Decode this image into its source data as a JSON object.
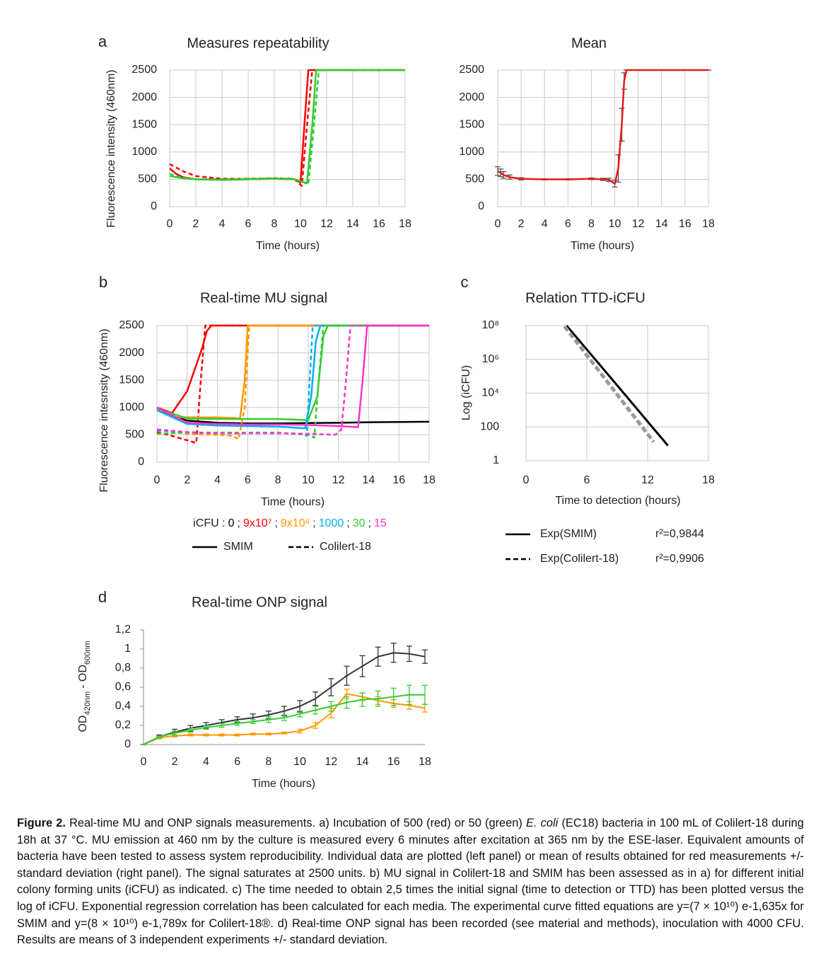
{
  "chart_data": [
    {
      "type": "line",
      "panel": "a",
      "title": "Measures repeatability",
      "ylabel": "Fluorescence intensity (460nm)",
      "xlabel": "Time  (hours)",
      "xlim": [
        0,
        18
      ],
      "xticks": [
        0,
        2,
        4,
        6,
        8,
        10,
        12,
        14,
        16,
        18
      ],
      "ylim": [
        0,
        2500
      ],
      "yticks": [
        0,
        500,
        1000,
        1500,
        2000,
        2500
      ],
      "grid": true,
      "series": [
        {
          "color": "#ff0000",
          "dashed": false,
          "x": [
            0,
            0.5,
            1,
            2,
            4,
            6,
            8,
            9.5,
            10,
            10.3,
            10.6,
            18
          ],
          "values": [
            700,
            600,
            540,
            500,
            500,
            500,
            510,
            500,
            440,
            1500,
            2500,
            2500
          ]
        },
        {
          "color": "#ff0000",
          "dashed": true,
          "x": [
            0,
            1,
            2,
            4,
            6,
            8,
            9.5,
            10.1,
            10.5,
            10.9,
            18
          ],
          "values": [
            780,
            650,
            560,
            510,
            510,
            520,
            510,
            380,
            1500,
            2500,
            2500
          ]
        },
        {
          "color": "#33cc33",
          "dashed": false,
          "x": [
            0,
            1,
            2,
            4,
            6,
            8,
            9.5,
            10.5,
            10.9,
            11.2,
            18
          ],
          "values": [
            560,
            520,
            500,
            490,
            500,
            510,
            500,
            430,
            1500,
            2500,
            2500
          ]
        },
        {
          "color": "#33cc33",
          "dashed": true,
          "x": [
            0,
            1,
            2,
            4,
            6,
            8,
            9.5,
            10.6,
            11,
            11.4,
            18
          ],
          "values": [
            600,
            530,
            500,
            500,
            510,
            520,
            510,
            410,
            1400,
            2500,
            2500
          ]
        }
      ]
    },
    {
      "type": "line",
      "title": "Mean",
      "xlabel": "Time (hours)",
      "xlim": [
        0,
        18
      ],
      "xticks": [
        0,
        2,
        4,
        6,
        8,
        10,
        12,
        14,
        16,
        18
      ],
      "ylim": [
        0,
        2500
      ],
      "yticks": [
        0,
        500,
        1000,
        1500,
        2000,
        2500
      ],
      "grid": true,
      "series": [
        {
          "color": "#e31a1c",
          "dashed": false,
          "x": [
            0,
            0.25,
            0.5,
            1,
            2,
            4,
            6,
            8,
            9,
            9.5,
            10,
            10.3,
            10.6,
            10.8,
            11,
            18
          ],
          "values": [
            650,
            620,
            580,
            540,
            510,
            500,
            500,
            510,
            500,
            490,
            420,
            700,
            1500,
            2300,
            2500,
            2500
          ],
          "errors": [
            80,
            70,
            60,
            40,
            20,
            10,
            10,
            15,
            20,
            30,
            60,
            250,
            300,
            150,
            0,
            0
          ],
          "error_color": "#555555"
        }
      ]
    },
    {
      "type": "line",
      "panel": "b",
      "title": "Real-time MU signal",
      "ylabel": "Fluorescence intesnsity (460nm)",
      "xlabel": "Time (hours)",
      "xlim": [
        0,
        18
      ],
      "xticks": [
        0,
        2,
        4,
        6,
        8,
        10,
        12,
        14,
        16,
        18
      ],
      "ylim": [
        0,
        2500
      ],
      "yticks": [
        0,
        500,
        1000,
        1500,
        2000,
        2500
      ],
      "grid": true,
      "legend_title": "iCFU :",
      "legend_separator": ";",
      "line_styles": [
        {
          "label": "SMIM",
          "dashed": false
        },
        {
          "label": "Colilert-18",
          "dashed": true
        }
      ],
      "series": [
        {
          "name": "0",
          "color": "#000000",
          "dashed": false,
          "x": [
            0,
            1,
            2,
            4,
            6,
            8,
            10,
            12,
            14,
            16,
            18
          ],
          "values": [
            1000,
            850,
            760,
            720,
            710,
            710,
            715,
            720,
            730,
            735,
            740
          ]
        },
        {
          "name": "9x10⁷",
          "color": "#ff0000",
          "dashed": false,
          "x": [
            0,
            1,
            2,
            3,
            3.3,
            3.6,
            18
          ],
          "values": [
            1000,
            900,
            1300,
            2100,
            2400,
            2500,
            2500
          ]
        },
        {
          "name": "9x10⁷",
          "color": "#ff0000",
          "dashed": true,
          "x": [
            0,
            1,
            2,
            2.6,
            2.9,
            3.2,
            18
          ],
          "values": [
            550,
            480,
            400,
            350,
            1500,
            2500,
            2500
          ]
        },
        {
          "name": "9x10⁶",
          "color": "#ff9900",
          "dashed": false,
          "x": [
            0,
            1,
            2,
            4,
            5,
            5.5,
            5.8,
            6,
            18
          ],
          "values": [
            950,
            830,
            820,
            820,
            810,
            800,
            1500,
            2500,
            2500
          ]
        },
        {
          "name": "9x10⁶",
          "color": "#ff9900",
          "dashed": true,
          "x": [
            0,
            2,
            4,
            5,
            5.4,
            5.8,
            6.1,
            18
          ],
          "values": [
            600,
            520,
            500,
            480,
            420,
            1000,
            2500,
            2500
          ]
        },
        {
          "name": "1000",
          "color": "#00b0f0",
          "dashed": false,
          "x": [
            0,
            2,
            4,
            6,
            8,
            9.8,
            10.2,
            10.5,
            10.8,
            18
          ],
          "values": [
            950,
            700,
            670,
            660,
            650,
            620,
            1200,
            2200,
            2500,
            2500
          ]
        },
        {
          "name": "1000",
          "color": "#00b0f0",
          "dashed": true,
          "x": [
            0,
            2,
            4,
            6,
            8,
            9.6,
            9.9,
            10.1,
            10.3,
            18
          ],
          "values": [
            580,
            540,
            530,
            530,
            530,
            520,
            480,
            1500,
            2500,
            2500
          ]
        },
        {
          "name": "30",
          "color": "#33cc33",
          "dashed": false,
          "x": [
            0,
            2,
            4,
            6,
            8,
            10,
            10.6,
            11,
            11.3,
            18
          ],
          "values": [
            980,
            800,
            790,
            790,
            790,
            770,
            1200,
            2300,
            2500,
            2500
          ]
        },
        {
          "name": "30",
          "color": "#33cc33",
          "dashed": true,
          "x": [
            0,
            2,
            4,
            6,
            8,
            10,
            10.4,
            10.7,
            11,
            18
          ],
          "values": [
            520,
            540,
            540,
            540,
            540,
            500,
            450,
            1500,
            2500,
            2500
          ]
        },
        {
          "name": "15",
          "color": "#ff33cc",
          "dashed": false,
          "x": [
            0,
            2,
            4,
            6,
            8,
            10,
            12,
            13.3,
            13.6,
            13.9,
            18
          ],
          "values": [
            1000,
            720,
            700,
            690,
            690,
            680,
            660,
            640,
            1500,
            2500,
            2500
          ]
        },
        {
          "name": "15",
          "color": "#ff33cc",
          "dashed": true,
          "x": [
            0,
            2,
            4,
            6,
            8,
            10,
            11.8,
            12.2,
            12.5,
            12.8,
            18
          ],
          "values": [
            600,
            550,
            530,
            530,
            530,
            520,
            500,
            600,
            1500,
            2500,
            2500
          ]
        }
      ]
    },
    {
      "type": "line",
      "panel": "c",
      "title": "Relation TTD-iCFU",
      "ylabel": "Log (iCFU)",
      "xlabel": "Time to detection (hours)",
      "xlim": [
        0,
        18
      ],
      "xticks": [
        0,
        6,
        12,
        18
      ],
      "ylim": [
        1,
        100000000
      ],
      "log_y": true,
      "yticks": [
        1,
        100,
        {
          "value": 10000,
          "label": "10⁴"
        },
        {
          "value": 1000000,
          "label": "10⁶"
        },
        {
          "value": 100000000,
          "label": "10⁸"
        }
      ],
      "grid": true,
      "series": [
        {
          "name": "Exp(SMIM)",
          "r2_label": "r²=0,9844",
          "color": "#000000",
          "dashed": false,
          "x": [
            4,
            6,
            8,
            10,
            12,
            14
          ],
          "values": [
            100000000,
            3850000,
            146000,
            5600,
            210,
            7.9
          ]
        },
        {
          "name": "Exp(Colilert-18)",
          "r2_label": "r²=0,9906",
          "color": "#999999",
          "dashed": true,
          "x": [
            3.8,
            6,
            8,
            10,
            12.6
          ],
          "values": [
            89000000,
            1750000,
            49000,
            1360,
            13
          ]
        }
      ]
    },
    {
      "type": "line",
      "panel": "d",
      "title": "Real-time ONP signal",
      "ylabel": [
        "OD",
        "420nm",
        "- OD",
        "600nm"
      ],
      "xlabel": "Time (hours)",
      "xlim": [
        0,
        18
      ],
      "xticks": [
        0,
        2,
        4,
        6,
        8,
        10,
        12,
        14,
        16,
        18
      ],
      "ylim": [
        0,
        1.2
      ],
      "yticks": [
        0,
        {
          "value": 0.2,
          "label": "0,2"
        },
        {
          "value": 0.4,
          "label": "0,4"
        },
        {
          "value": 0.6,
          "label": "0,6"
        },
        {
          "value": 0.8,
          "label": "0,8"
        },
        1,
        {
          "value": 1.2,
          "label": "1,2"
        }
      ],
      "grid": false,
      "x": [
        0,
        1,
        2,
        3,
        4,
        5,
        6,
        7,
        8,
        9,
        10,
        11,
        12,
        13,
        14,
        15,
        16,
        17,
        18
      ],
      "series": [
        {
          "color": "#333333",
          "dashed": false,
          "values": [
            0,
            0.08,
            0.13,
            0.17,
            0.2,
            0.23,
            0.26,
            0.28,
            0.31,
            0.35,
            0.4,
            0.48,
            0.6,
            0.72,
            0.82,
            0.92,
            0.96,
            0.95,
            0.92
          ],
          "errors": [
            0,
            0.02,
            0.03,
            0.03,
            0.03,
            0.03,
            0.03,
            0.04,
            0.04,
            0.05,
            0.06,
            0.07,
            0.09,
            0.1,
            0.11,
            0.1,
            0.1,
            0.08,
            0.07
          ]
        },
        {
          "color": "#ff9900",
          "dashed": false,
          "values": [
            0,
            0.07,
            0.09,
            0.1,
            0.1,
            0.1,
            0.1,
            0.11,
            0.11,
            0.12,
            0.14,
            0.2,
            0.33,
            0.53,
            0.5,
            0.46,
            0.43,
            0.41,
            0.38
          ],
          "errors": [
            0,
            0.01,
            0.01,
            0.01,
            0.01,
            0.01,
            0.01,
            0.01,
            0.01,
            0.01,
            0.02,
            0.03,
            0.05,
            0.05,
            0.04,
            0.04,
            0.04,
            0.04,
            0.04
          ]
        },
        {
          "color": "#33cc33",
          "dashed": false,
          "values": [
            0,
            0.08,
            0.12,
            0.15,
            0.18,
            0.2,
            0.22,
            0.24,
            0.26,
            0.28,
            0.32,
            0.36,
            0.4,
            0.44,
            0.47,
            0.48,
            0.5,
            0.52,
            0.52
          ],
          "errors": [
            0,
            0.01,
            0.02,
            0.02,
            0.02,
            0.02,
            0.02,
            0.02,
            0.03,
            0.03,
            0.03,
            0.04,
            0.05,
            0.06,
            0.07,
            0.08,
            0.09,
            0.1,
            0.1
          ]
        }
      ]
    }
  ],
  "caption": {
    "label": "Figure 2.",
    "part1": "Real-time MU and ONP signals measurements. a) Incubation of 500 (red) or 50 (green)",
    "italic": "E. coli",
    "part2": "(EC18) bacteria in 100 mL of Colilert-18 during 18h at 37 °C. MU emission at 460 nm by the culture is measured every 6 minutes after excitation at 365 nm by the ESE-laser. Equivalent amounts of bacteria have been tested to assess system reproducibility. Individual data are plotted (left panel) or mean of results obtained for red measurements +/- standard deviation (right panel). The signal saturates at 2500 units. b) MU signal in Colilert-18 and SMIM has been assessed as in a) for different initial colony forming units (iCFU) as indicated. c) The time needed to obtain 2,5 times the initial signal (time to detection or TTD) has been plotted versus the log of iCFU. Exponential regression correlation has been calculated for each media. The experimental curve fitted equations are y=(7 × 10¹⁰) e-1,635x for SMIM and y=(8 × 10¹⁰) e-1,789x for Colilert-18®. d) Real-time ONP signal has been recorded (see material and methods), inoculation with 4000 CFU. Results are means of 3 independent experiments +/- standard deviation."
  }
}
